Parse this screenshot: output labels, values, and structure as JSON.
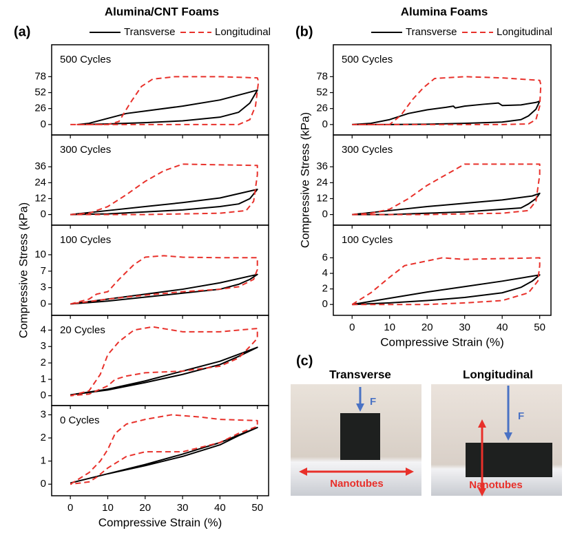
{
  "chart_data": [
    {
      "type": "line",
      "title": "Alumina/CNT Foams",
      "panel_label": "(a)",
      "xlabel": "Compressive Strain (%)",
      "ylabel": "Compressive Stress (kPa)",
      "xlim": [
        -5,
        53
      ],
      "xticks": [
        0,
        10,
        20,
        30,
        40,
        50
      ],
      "series": [
        {
          "name": "Transverse",
          "color": "#000000",
          "dashed": false
        },
        {
          "name": "Longitudinal",
          "color": "#e8302a",
          "dashed": true
        }
      ],
      "subplots": [
        {
          "annotation": "500 Cycles",
          "ylim": [
            -17,
            130
          ],
          "yticks": [
            0,
            26,
            52,
            78
          ],
          "lines": [
            {
              "x": [
                2,
                5,
                10,
                15,
                20,
                30,
                40,
                50,
                48,
                45,
                40,
                30,
                20,
                10,
                2
              ],
              "values": [
                0,
                2,
                10,
                18,
                22,
                30,
                40,
                56,
                35,
                20,
                12,
                6,
                3,
                1,
                0
              ]
            },
            {
              "x": [
                0,
                10,
                13,
                16,
                19,
                22,
                28,
                40,
                50,
                50.3,
                49.5,
                48,
                45,
                30,
                15,
                5,
                0
              ],
              "values": [
                0,
                0,
                5,
                35,
                62,
                74,
                78,
                78,
                76,
                70,
                30,
                8,
                0,
                0,
                0,
                0,
                0
              ]
            }
          ]
        },
        {
          "annotation": "300 Cycles",
          "ylim": [
            -8,
            60
          ],
          "yticks": [
            0,
            12,
            24,
            36
          ],
          "lines": [
            {
              "x": [
                0,
                10,
                20,
                30,
                40,
                50,
                48,
                45,
                40,
                30,
                20,
                10,
                0
              ],
              "values": [
                0,
                3,
                6,
                9,
                12.5,
                19,
                12,
                8,
                6,
                3.5,
                2,
                0.5,
                0
              ]
            },
            {
              "x": [
                0,
                5,
                10,
                15,
                20,
                25,
                30,
                40,
                50,
                50,
                49,
                47,
                40,
                30,
                20,
                10,
                0
              ],
              "values": [
                0,
                1,
                6,
                15,
                25,
                33,
                38,
                37.5,
                37,
                30,
                10,
                3,
                1,
                0.5,
                0,
                0,
                0
              ]
            }
          ]
        },
        {
          "annotation": "100 Cycles",
          "ylim": [
            -2.3,
            16
          ],
          "yticks": [
            0,
            {
              "value": 3.333,
              "label": "3"
            },
            {
              "value": 6.667,
              "label": "7"
            },
            10
          ],
          "lines": [
            {
              "x": [
                0,
                10,
                20,
                30,
                40,
                50,
                48,
                45,
                40,
                30,
                20,
                10,
                0
              ],
              "values": [
                0,
                1,
                2,
                3,
                4.3,
                6,
                5,
                4,
                3,
                2.2,
                1.4,
                0.6,
                0
              ]
            },
            {
              "x": [
                0,
                5,
                7,
                10,
                13,
                17,
                20,
                25,
                30,
                40,
                50,
                50,
                49,
                45,
                40,
                30,
                20,
                10,
                0
              ],
              "values": [
                0,
                1,
                2,
                2.5,
                5,
                8,
                9.5,
                9.8,
                9.5,
                9.4,
                9.4,
                7,
                5,
                3.5,
                3,
                2.5,
                1.8,
                1,
                0
              ]
            }
          ]
        },
        {
          "annotation": "20 Cycles",
          "ylim": [
            -0.6,
            4.9
          ],
          "yticks": [
            0,
            1,
            2,
            3,
            4
          ],
          "lines": [
            {
              "x": [
                0,
                10,
                20,
                30,
                40,
                50,
                45,
                40,
                30,
                20,
                10,
                0
              ],
              "values": [
                0.05,
                0.4,
                0.9,
                1.5,
                2.1,
                2.95,
                2.4,
                1.9,
                1.3,
                0.8,
                0.35,
                0.05
              ]
            },
            {
              "x": [
                0,
                5,
                8,
                10,
                13,
                17,
                22,
                30,
                40,
                50,
                50,
                48,
                45,
                40,
                30,
                20,
                15,
                12,
                10,
                5,
                0
              ],
              "values": [
                0,
                0.3,
                1.3,
                2.5,
                3.3,
                4,
                4.2,
                3.9,
                3.9,
                4.1,
                3.5,
                3,
                2.3,
                1.8,
                1.5,
                1.4,
                1.2,
                1,
                0.6,
                0.1,
                0
              ]
            }
          ]
        },
        {
          "annotation": "0 Cycles",
          "ylim": [
            -0.5,
            3.4
          ],
          "yticks": [
            0,
            1,
            2,
            3
          ],
          "lines": [
            {
              "x": [
                0,
                10,
                20,
                30,
                40,
                50,
                45,
                40,
                30,
                20,
                10,
                0
              ],
              "values": [
                0.05,
                0.45,
                0.85,
                1.3,
                1.8,
                2.45,
                2.1,
                1.7,
                1.2,
                0.8,
                0.45,
                0.05
              ]
            },
            {
              "x": [
                0,
                5,
                8,
                10,
                12,
                15,
                20,
                27,
                35,
                40,
                50,
                50,
                45,
                40,
                30,
                20,
                15,
                10,
                7,
                5,
                0
              ],
              "values": [
                0,
                0.5,
                1,
                1.5,
                2.2,
                2.6,
                2.8,
                3,
                2.9,
                2.8,
                2.75,
                2.5,
                2.2,
                1.8,
                1.4,
                1.4,
                1.2,
                0.7,
                0.3,
                0.1,
                0
              ]
            }
          ]
        }
      ]
    },
    {
      "type": "line",
      "title": "Alumina Foams",
      "panel_label": "(b)",
      "xlabel": "Compressive Strain (%)",
      "ylabel": "Compressive Stress (kPa)",
      "xlim": [
        -5,
        53
      ],
      "xticks": [
        0,
        10,
        20,
        30,
        40,
        50
      ],
      "series": [
        {
          "name": "Transverse",
          "color": "#000000",
          "dashed": false
        },
        {
          "name": "Longitudinal",
          "color": "#e8302a",
          "dashed": true
        }
      ],
      "subplots": [
        {
          "annotation": "500 Cycles",
          "ylim": [
            -17,
            130
          ],
          "yticks": [
            0,
            26,
            52,
            78
          ],
          "lines": [
            {
              "x": [
                0,
                5,
                10,
                15,
                20,
                25,
                27,
                27.5,
                30,
                35,
                39,
                40,
                45,
                49,
                50,
                49,
                47,
                45,
                40,
                30,
                20,
                10,
                0
              ],
              "values": [
                0,
                2,
                8,
                18,
                24,
                28,
                30,
                27,
                30,
                33,
                35,
                31,
                32,
                36,
                38,
                25,
                14,
                8,
                4,
                2,
                0.5,
                0,
                0
              ]
            },
            {
              "x": [
                0,
                10,
                13,
                16,
                19,
                22,
                30,
                40,
                50,
                50.3,
                50,
                49,
                47,
                40,
                20,
                0
              ],
              "values": [
                0,
                0,
                15,
                40,
                60,
                75,
                78,
                76,
                72,
                65,
                30,
                8,
                1,
                0,
                0,
                0
              ]
            }
          ]
        },
        {
          "annotation": "300 Cycles",
          "ylim": [
            -8,
            60
          ],
          "yticks": [
            0,
            12,
            24,
            36
          ],
          "lines": [
            {
              "x": [
                0,
                10,
                20,
                30,
                40,
                48,
                50,
                49,
                47,
                45,
                40,
                30,
                20,
                10,
                0
              ],
              "values": [
                0,
                3,
                6,
                8.5,
                11,
                14,
                16,
                12,
                8,
                5,
                4,
                2,
                1,
                0,
                0
              ]
            },
            {
              "x": [
                0,
                5,
                10,
                15,
                20,
                25,
                30,
                40,
                50,
                50,
                49,
                47,
                40,
                20,
                0
              ],
              "values": [
                0,
                1,
                4,
                12,
                22,
                30,
                38,
                38,
                38,
                30,
                10,
                3,
                1,
                0,
                0
              ]
            }
          ]
        },
        {
          "annotation": "100 Cycles",
          "ylim": [
            -1.4,
            10.2
          ],
          "yticks": [
            0,
            2,
            4,
            6
          ],
          "lines": [
            {
              "x": [
                0,
                10,
                20,
                30,
                40,
                50,
                48,
                45,
                40,
                30,
                20,
                10,
                0
              ],
              "values": [
                0,
                0.8,
                1.6,
                2.3,
                3,
                3.8,
                3,
                2.2,
                1.5,
                0.9,
                0.5,
                0.2,
                0
              ]
            },
            {
              "x": [
                0,
                5,
                10,
                14,
                20,
                24,
                30,
                40,
                50,
                50,
                49.5,
                47,
                40,
                30,
                20,
                0
              ],
              "values": [
                0,
                1.5,
                3.5,
                5,
                5.6,
                6,
                5.8,
                5.9,
                6,
                5,
                3,
                1.5,
                0.5,
                0.2,
                0,
                0
              ]
            }
          ]
        }
      ]
    }
  ],
  "photos": {
    "label": "(c)",
    "items": [
      {
        "title": "Transverse",
        "force": "F",
        "fiber": "Nanotubes"
      },
      {
        "title": "Longitudinal",
        "force": "F",
        "fiber": "Nanotubes"
      }
    ]
  }
}
